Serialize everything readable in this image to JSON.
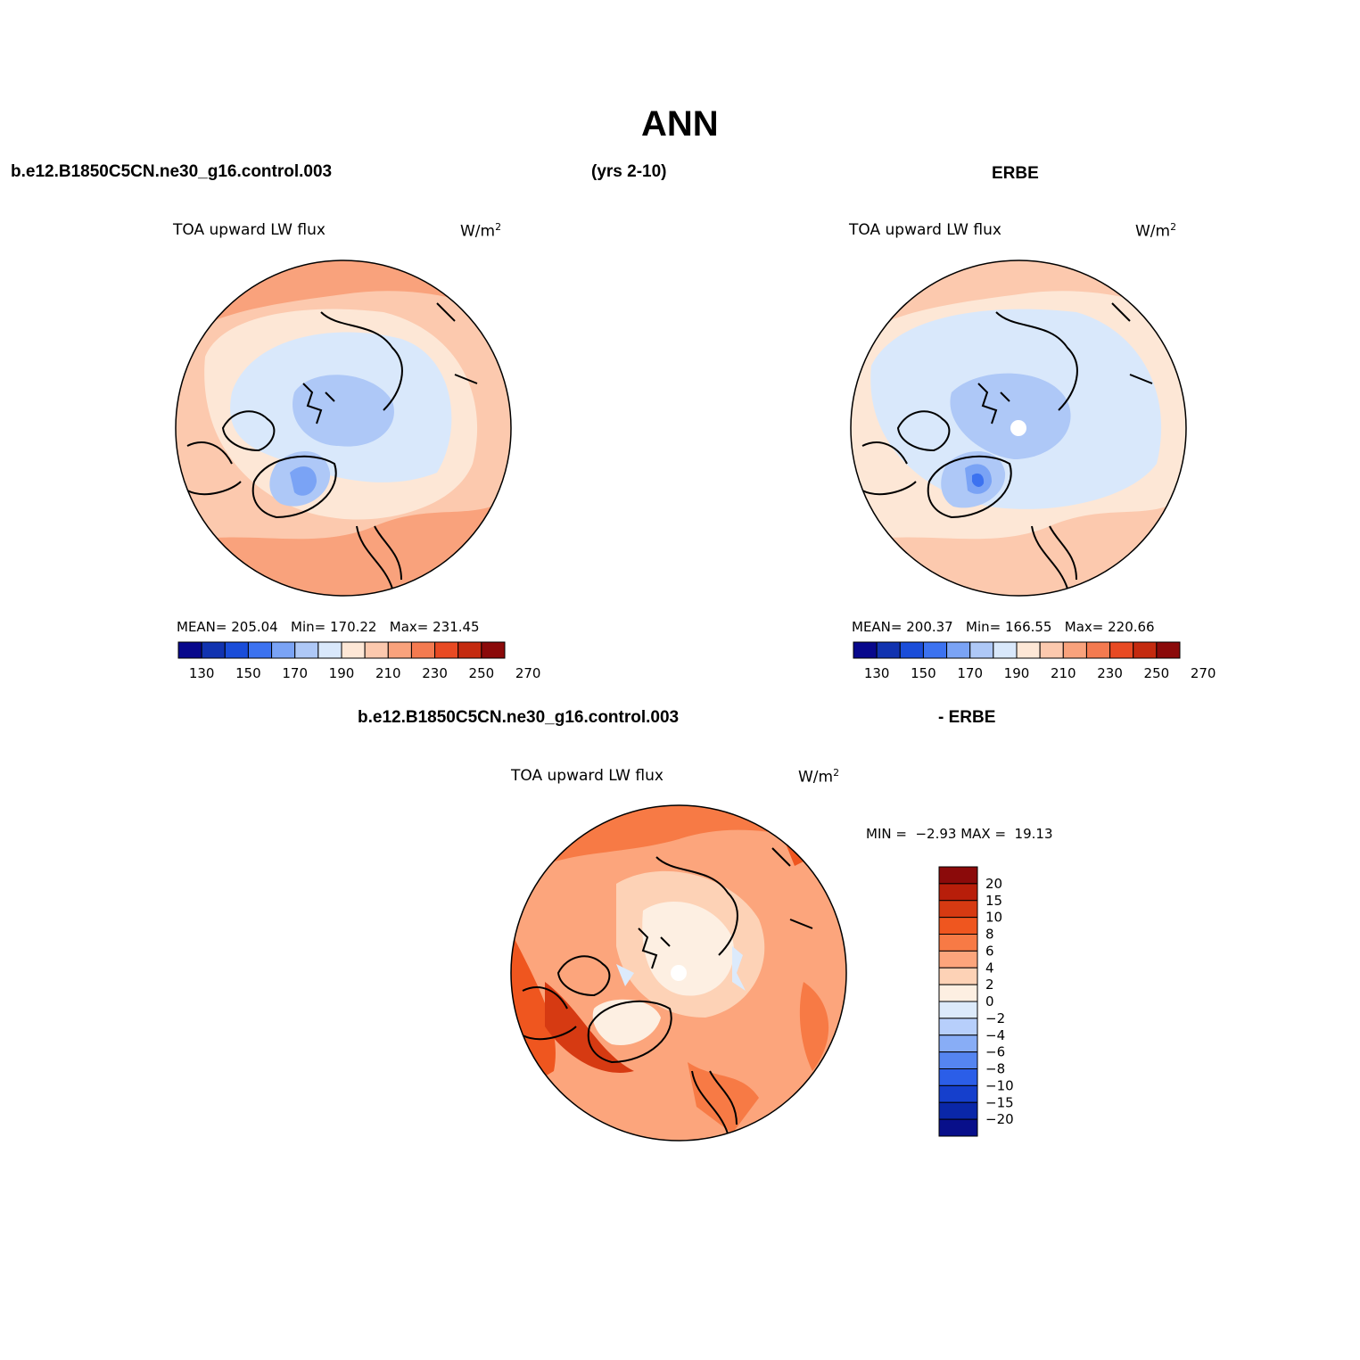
{
  "title": "ANN",
  "model_case": "b.e12.B1850C5CN.ne30_g16.control.003",
  "years": "(yrs 2-10)",
  "obs": "ERBE",
  "diff_case": "b.e12.B1850C5CN.ne30_g16.control.003",
  "diff_obs": "- ERBE",
  "variable": "TOA upward LW flux",
  "units": "W/m",
  "units_sup": "2",
  "panels": {
    "model": {
      "stats": "MEAN= 205.04   Min= 170.22   Max= 231.45",
      "colorbar_levels": [
        "130",
        "150",
        "170",
        "190",
        "210",
        "230",
        "250",
        "270"
      ]
    },
    "obs": {
      "stats": "MEAN= 200.37   Min= 166.55   Max= 220.66",
      "colorbar_levels": [
        "130",
        "150",
        "170",
        "190",
        "210",
        "230",
        "250",
        "270"
      ]
    },
    "diff": {
      "minmax": "MIN =  −2.93 MAX =  19.13",
      "colorbar_levels": [
        "20",
        "15",
        "10",
        "8",
        "6",
        "4",
        "2",
        "0",
        "−2",
        "−4",
        "−6",
        "−8",
        "−10",
        "−15",
        "−20"
      ]
    }
  },
  "colors": {
    "abs_scale": [
      "#08088c",
      "#1133b0",
      "#1a4dd9",
      "#3c72f0",
      "#7aa3f5",
      "#aec8f7",
      "#d9e8fb",
      "#fde7d6",
      "#fcc9ae",
      "#f9a27c",
      "#f47a50",
      "#e84a23",
      "#c42a0f",
      "#8b0a0a"
    ],
    "diff_scale": [
      "#8b0a0a",
      "#b81e0a",
      "#d63a12",
      "#ef561f",
      "#f77a45",
      "#fca57c",
      "#fdd2b6",
      "#fdefe2",
      "#dceafb",
      "#b7cffb",
      "#88adf6",
      "#5585f0",
      "#2b5ee8",
      "#153fcc",
      "#0a27a8",
      "#080f8a"
    ]
  }
}
